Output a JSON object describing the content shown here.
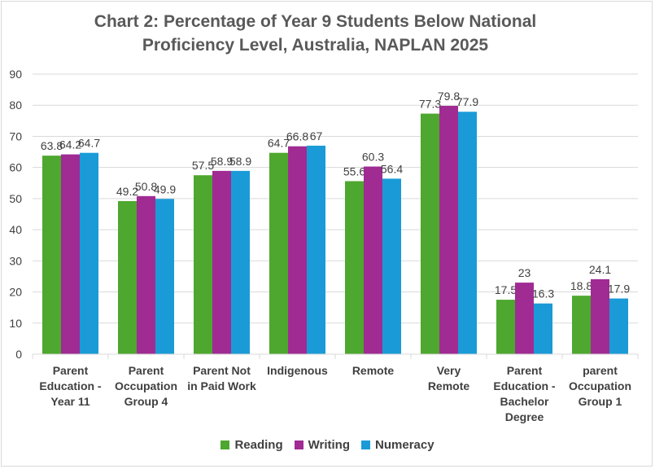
{
  "chart_data": {
    "type": "bar",
    "title_line1": "Chart 2: Percentage of Year 9 Students Below National",
    "title_line2": "Proficiency Level, Australia, NAPLAN 2025",
    "categories": [
      [
        "Parent",
        "Education -",
        "Year 11"
      ],
      [
        "Parent",
        "Occupation",
        "Group 4"
      ],
      [
        "Parent Not",
        "in Paid Work"
      ],
      [
        "Indigenous"
      ],
      [
        "Remote"
      ],
      [
        "Very",
        "Remote"
      ],
      [
        "Parent",
        "Education -",
        "Bachelor",
        "Degree"
      ],
      [
        "parent",
        "Occupation",
        "Group 1"
      ]
    ],
    "series": [
      {
        "name": "Reading",
        "color": "#4ea72e",
        "values": [
          63.8,
          49.2,
          57.5,
          64.7,
          55.6,
          77.3,
          17.5,
          18.8
        ]
      },
      {
        "name": "Writing",
        "color": "#a02b93",
        "values": [
          64.2,
          50.8,
          58.9,
          66.8,
          60.3,
          79.8,
          23,
          24.1
        ]
      },
      {
        "name": "Numeracy",
        "color": "#1a9bd7",
        "values": [
          64.7,
          49.9,
          58.9,
          67,
          56.4,
          77.9,
          16.3,
          17.9
        ]
      }
    ],
    "ylim": [
      0,
      90
    ],
    "yticks": [
      0,
      10,
      20,
      30,
      40,
      50,
      60,
      70,
      80,
      90
    ],
    "grid": true,
    "legend_position": "bottom",
    "axis_color": "#d9d9d9",
    "label_color": "#404040"
  }
}
